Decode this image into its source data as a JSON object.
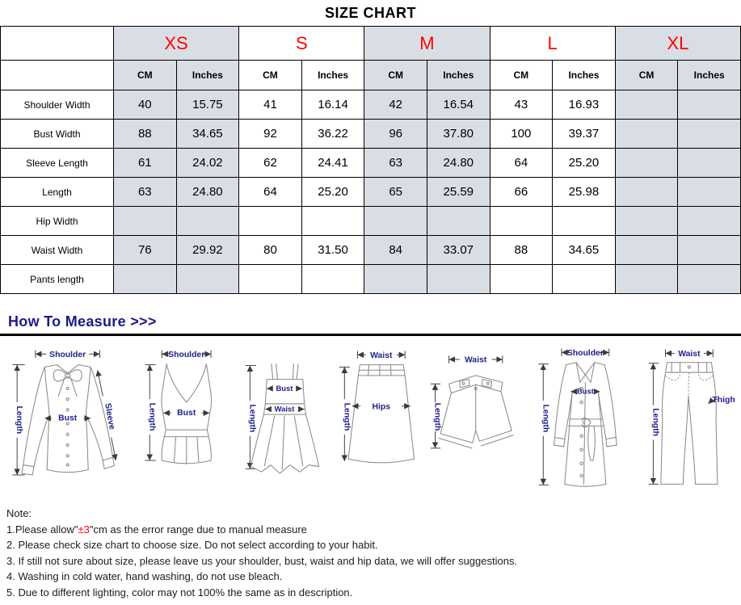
{
  "title": "SIZE CHART",
  "size_table": {
    "sizes": [
      "XS",
      "S",
      "M",
      "L",
      "XL"
    ],
    "unit_headers": [
      "CM",
      "Inches"
    ],
    "rows": [
      {
        "label": "Shoulder Width",
        "values": [
          "40",
          "15.75",
          "41",
          "16.14",
          "42",
          "16.54",
          "43",
          "16.93",
          "",
          ""
        ]
      },
      {
        "label": "Bust Width",
        "values": [
          "88",
          "34.65",
          "92",
          "36.22",
          "96",
          "37.80",
          "100",
          "39.37",
          "",
          ""
        ]
      },
      {
        "label": "Sleeve Length",
        "values": [
          "61",
          "24.02",
          "62",
          "24.41",
          "63",
          "24.80",
          "64",
          "25.20",
          "",
          ""
        ]
      },
      {
        "label": "Length",
        "values": [
          "63",
          "24.80",
          "64",
          "25.20",
          "65",
          "25.59",
          "66",
          "25.98",
          "",
          ""
        ]
      },
      {
        "label": "Hip Width",
        "values": [
          "",
          "",
          "",
          "",
          "",
          "",
          "",
          "",
          "",
          ""
        ]
      },
      {
        "label": "Waist Width",
        "values": [
          "76",
          "29.92",
          "80",
          "31.50",
          "84",
          "33.07",
          "88",
          "34.65",
          "",
          ""
        ]
      },
      {
        "label": "Pants length",
        "values": [
          "",
          "",
          "",
          "",
          "",
          "",
          "",
          "",
          "",
          ""
        ]
      }
    ]
  },
  "measure": {
    "heading": "How To Measure >>>",
    "figures": [
      {
        "name": "blouse",
        "labels": [
          "Shoulder",
          "Length",
          "Bust",
          "Sleeve"
        ]
      },
      {
        "name": "tank-top",
        "labels": [
          "Shoulder",
          "Length",
          "Bust"
        ]
      },
      {
        "name": "dress",
        "labels": [
          "Length",
          "Bust",
          "Waist"
        ]
      },
      {
        "name": "skirt",
        "labels": [
          "Waist",
          "Length",
          "Hips"
        ]
      },
      {
        "name": "shorts",
        "labels": [
          "Waist",
          "Length"
        ]
      },
      {
        "name": "coat",
        "labels": [
          "Shoulder",
          "Length",
          "Bust"
        ]
      },
      {
        "name": "pants",
        "labels": [
          "Waist",
          "Length",
          "Thigh"
        ]
      }
    ]
  },
  "notes": {
    "heading": "Note:",
    "line1_prefix": "1.Please allow\"",
    "line1_red": "±3",
    "line1_suffix": "\"cm as the error range due to manual measure",
    "items": [
      "2. Please check size chart to choose size. Do not select according to your habit.",
      "3. If still not sure about size, please leave us your shoulder, bust, waist and hip data, we will offer suggestions.",
      "4. Washing in cold water, hand washing, do not use bleach.",
      "5. Due to different lighting, color may not 100% the same as in description."
    ]
  },
  "colors": {
    "size_letter_red": "#ff0000",
    "note_red": "#ff0000",
    "measure_navy": "#1b1b86",
    "diagram_label_navy": "#20208e",
    "cell_shade_gray": "#d9dee5",
    "border_black": "#000000"
  }
}
